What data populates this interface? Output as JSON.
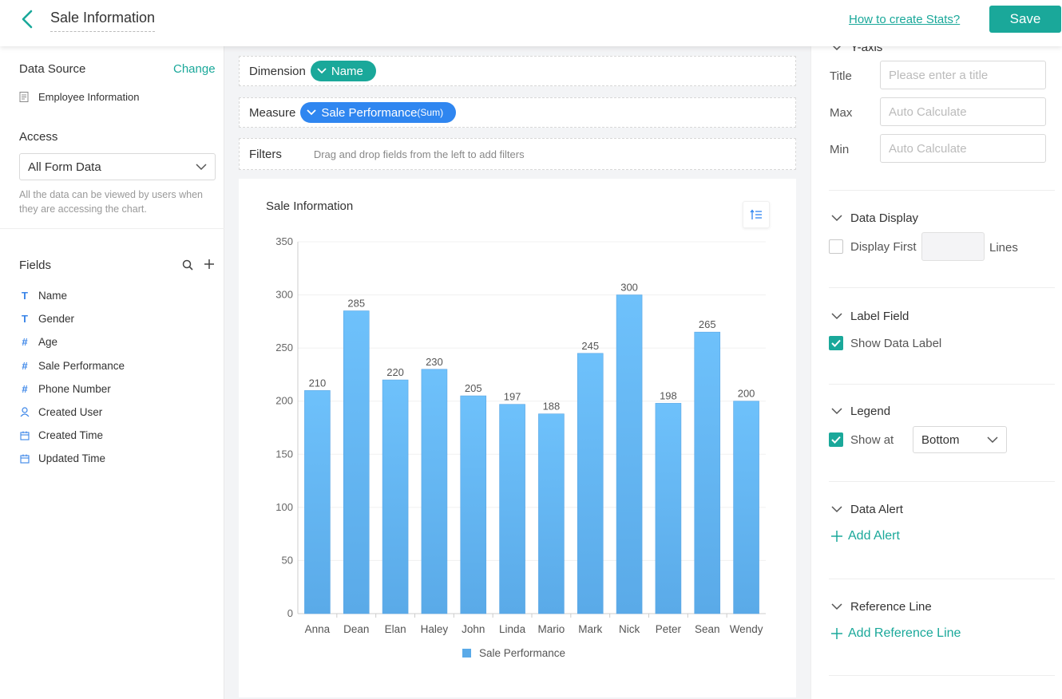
{
  "header": {
    "title": "Sale Information",
    "help_link": "How to create Stats?",
    "save_label": "Save"
  },
  "left": {
    "data_source_label": "Data Source",
    "change_label": "Change",
    "data_source_name": "Employee Information",
    "access_label": "Access",
    "access_value": "All Form Data",
    "access_hint": "All the data can be viewed by users when they are accessing the chart.",
    "fields_label": "Fields",
    "fields": [
      {
        "label": "Name",
        "icon": "text-icon"
      },
      {
        "label": "Gender",
        "icon": "text-icon"
      },
      {
        "label": "Age",
        "icon": "number-icon"
      },
      {
        "label": "Sale Performance",
        "icon": "number-icon"
      },
      {
        "label": "Phone Number",
        "icon": "number-icon"
      },
      {
        "label": "Created User",
        "icon": "user-icon"
      },
      {
        "label": "Created Time",
        "icon": "calendar-icon"
      },
      {
        "label": "Updated Time",
        "icon": "calendar-icon"
      }
    ]
  },
  "center": {
    "dimension_label": "Dimension",
    "dimension_value": "Name",
    "measure_label": "Measure",
    "measure_value": "Sale Performance",
    "measure_agg": "(Sum)",
    "filters_label": "Filters",
    "filters_hint": "Drag and drop fields from the left to add filters"
  },
  "chart_data": {
    "type": "bar",
    "title": "Sale Information",
    "categories": [
      "Anna",
      "Dean",
      "Elan",
      "Haley",
      "John",
      "Linda",
      "Mario",
      "Mark",
      "Nick",
      "Peter",
      "Sean",
      "Wendy"
    ],
    "series": [
      {
        "name": "Sale Performance",
        "values": [
          210,
          285,
          220,
          230,
          205,
          197,
          188,
          245,
          300,
          198,
          265,
          200
        ]
      }
    ],
    "ylim": [
      0,
      350
    ],
    "yticks": [
      0,
      50,
      100,
      150,
      200,
      250,
      300,
      350
    ],
    "data_labels": true,
    "legend": "bottom",
    "grid": true,
    "color": "#64b5f6"
  },
  "right": {
    "yaxis_title": "Y-axis",
    "title_label": "Title",
    "title_placeholder": "Please enter a title",
    "max_label": "Max",
    "max_placeholder": "Auto Calculate",
    "min_label": "Min",
    "min_placeholder": "Auto Calculate",
    "data_display_title": "Data Display",
    "display_first_label": "Display First",
    "lines_label": "Lines",
    "label_field_title": "Label Field",
    "show_data_label": "Show Data Label",
    "legend_title": "Legend",
    "show_at_label": "Show at",
    "legend_position": "Bottom",
    "data_alert_title": "Data Alert",
    "add_alert": "Add Alert",
    "reference_line_title": "Reference Line",
    "add_reference_line": "Add Reference Line"
  },
  "colors": {
    "accent": "#1aa89a",
    "measure_pill": "#2f86f0",
    "bar": "#64b5f6"
  }
}
